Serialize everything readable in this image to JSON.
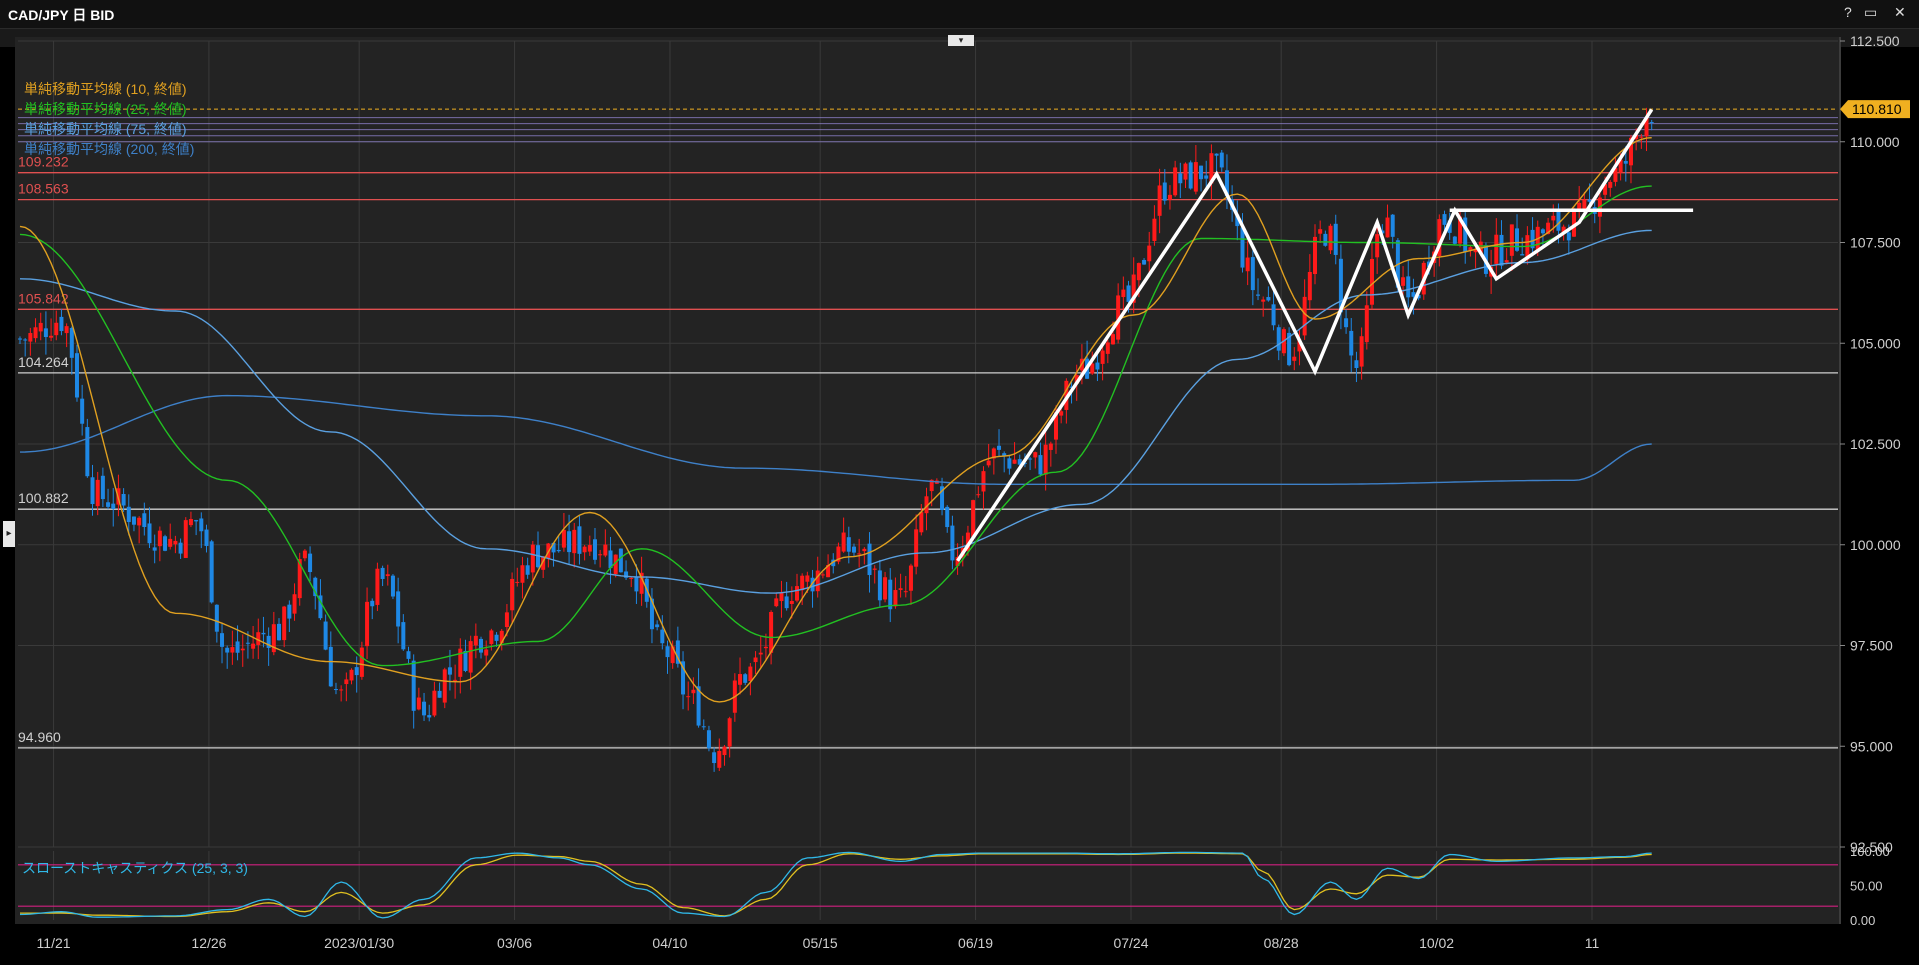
{
  "window": {
    "title": "CAD/JPY 日 BID",
    "help_label": "?",
    "restore_label": "▭",
    "close_label": "✕",
    "collapse_label": "▾",
    "expand_label": "▸"
  },
  "colors": {
    "background": "#000000",
    "panel": "#232323",
    "grid": "#3a3a3a",
    "up_candle": "#ff1a1a",
    "down_candle": "#1e88e5",
    "sma10": "#e0a020",
    "sma25": "#22c022",
    "sma75": "#5aa0e0",
    "sma200": "#3e80c8",
    "resistance": "#e05050",
    "support": "#d0d0d0",
    "price_tag": "#f0b020",
    "pattern": "#ffffff",
    "stoch_k": "#30b8e8",
    "stoch_d": "#e0c020",
    "stoch_band": "#d02080"
  },
  "chart_data": {
    "type": "candlestick",
    "title": "CAD/JPY 日 BID",
    "ylim": [
      92.5,
      112.5
    ],
    "y_ticks": [
      "112.500",
      "110.000",
      "107.500",
      "105.000",
      "102.500",
      "100.000",
      "97.500",
      "95.000",
      "92.500"
    ],
    "x_ticks": [
      "11/21",
      "12/26",
      "2023/01/30",
      "03/06",
      "04/10",
      "05/15",
      "06/19",
      "07/24",
      "08/28",
      "10/02",
      "11"
    ],
    "current_price": "110.810",
    "legend": [
      {
        "label": "単純移動平均線 (10, 終値)",
        "color": "#e0a020"
      },
      {
        "label": "単純移動平均線 (25, 終値)",
        "color": "#22c022"
      },
      {
        "label": "単純移動平均線 (75, 終値)",
        "color": "#5aa0e0"
      },
      {
        "label": "単純移動平均線 (200, 終値)",
        "color": "#3e80c8"
      }
    ],
    "horizontal_levels": [
      {
        "label": "109.232",
        "value": 109.232,
        "kind": "resistance"
      },
      {
        "label": "108.563",
        "value": 108.563,
        "kind": "resistance"
      },
      {
        "label": "105.842",
        "value": 105.842,
        "kind": "resistance"
      },
      {
        "label": "104.264",
        "value": 104.264,
        "kind": "support"
      },
      {
        "label": "100.882",
        "value": 100.882,
        "kind": "support"
      },
      {
        "label": "94.960",
        "value": 94.96,
        "kind": "support"
      }
    ],
    "ma_anchors": {
      "sma10": [
        [
          0,
          107.9
        ],
        [
          30,
          98.3
        ],
        [
          60,
          97.1
        ],
        [
          85,
          96.6
        ],
        [
          110,
          100.8
        ],
        [
          135,
          96.1
        ],
        [
          160,
          99.7
        ],
        [
          190,
          102.2
        ],
        [
          215,
          105.7
        ],
        [
          235,
          108.7
        ],
        [
          250,
          105.6
        ],
        [
          270,
          107.1
        ],
        [
          290,
          107.5
        ],
        [
          315,
          110.1
        ]
      ],
      "sma25": [
        [
          0,
          107.7
        ],
        [
          40,
          101.6
        ],
        [
          70,
          97.0
        ],
        [
          100,
          97.6
        ],
        [
          120,
          99.9
        ],
        [
          145,
          97.7
        ],
        [
          170,
          98.5
        ],
        [
          200,
          101.8
        ],
        [
          228,
          107.6
        ],
        [
          260,
          107.5
        ],
        [
          290,
          107.4
        ],
        [
          315,
          108.9
        ]
      ],
      "sma75": [
        [
          0,
          106.6
        ],
        [
          30,
          105.8
        ],
        [
          60,
          102.8
        ],
        [
          90,
          99.9
        ],
        [
          120,
          99.2
        ],
        [
          145,
          98.8
        ],
        [
          175,
          99.8
        ],
        [
          205,
          101.0
        ],
        [
          235,
          104.6
        ],
        [
          260,
          106.2
        ],
        [
          290,
          107.0
        ],
        [
          315,
          107.8
        ]
      ],
      "sma200": [
        [
          0,
          102.3
        ],
        [
          40,
          103.7
        ],
        [
          90,
          103.2
        ],
        [
          140,
          101.9
        ],
        [
          190,
          101.5
        ],
        [
          250,
          101.5
        ],
        [
          300,
          101.6
        ],
        [
          315,
          102.5
        ]
      ]
    },
    "close_anchors": [
      [
        0,
        105.1
      ],
      [
        8,
        105.6
      ],
      [
        15,
        101.2
      ],
      [
        30,
        100.1
      ],
      [
        34,
        100.6
      ],
      [
        40,
        97.3
      ],
      [
        50,
        97.9
      ],
      [
        55,
        99.5
      ],
      [
        62,
        96.2
      ],
      [
        70,
        99.1
      ],
      [
        78,
        95.8
      ],
      [
        82,
        96.8
      ],
      [
        90,
        97.8
      ],
      [
        100,
        99.8
      ],
      [
        110,
        100.1
      ],
      [
        118,
        99.4
      ],
      [
        124,
        97.4
      ],
      [
        130,
        96.1
      ],
      [
        134,
        94.9
      ],
      [
        140,
        96.8
      ],
      [
        150,
        99.0
      ],
      [
        160,
        99.9
      ],
      [
        170,
        98.6
      ],
      [
        176,
        101.4
      ],
      [
        180,
        99.8
      ],
      [
        188,
        102.2
      ],
      [
        196,
        102.0
      ],
      [
        205,
        104.3
      ],
      [
        213,
        105.9
      ],
      [
        222,
        109.0
      ],
      [
        230,
        109.3
      ],
      [
        240,
        106.1
      ],
      [
        245,
        104.8
      ],
      [
        252,
        107.8
      ],
      [
        258,
        104.4
      ],
      [
        263,
        108.1
      ],
      [
        268,
        106.0
      ],
      [
        275,
        108.1
      ],
      [
        282,
        107.1
      ],
      [
        290,
        107.6
      ],
      [
        300,
        108.0
      ],
      [
        308,
        109.2
      ],
      [
        315,
        110.8
      ]
    ],
    "pattern_lines": [
      {
        "points": [
          [
            181,
            99.6
          ],
          [
            231,
            109.2
          ],
          [
            250,
            104.3
          ],
          [
            262,
            108.0
          ],
          [
            268,
            105.7
          ],
          [
            277,
            108.3
          ],
          [
            285,
            106.6
          ],
          [
            301,
            108.0
          ],
          [
            315,
            110.8
          ]
        ]
      },
      {
        "points": [
          [
            276,
            108.3
          ],
          [
            323,
            108.3
          ]
        ]
      }
    ],
    "stochastic": {
      "label": "スローストキャスティクス (25, 3, 3)",
      "ylim": [
        0,
        100
      ],
      "y_ticks": [
        "100.00",
        "50.00",
        "0.00"
      ],
      "upper_band": 80,
      "lower_band": 20,
      "k_anchors": [
        [
          0,
          8
        ],
        [
          8,
          12
        ],
        [
          15,
          4
        ],
        [
          30,
          6
        ],
        [
          40,
          15
        ],
        [
          48,
          30
        ],
        [
          55,
          5
        ],
        [
          62,
          55
        ],
        [
          70,
          3
        ],
        [
          78,
          30
        ],
        [
          88,
          90
        ],
        [
          96,
          97
        ],
        [
          104,
          90
        ],
        [
          110,
          80
        ],
        [
          120,
          45
        ],
        [
          128,
          10
        ],
        [
          136,
          5
        ],
        [
          144,
          40
        ],
        [
          152,
          90
        ],
        [
          160,
          98
        ],
        [
          170,
          85
        ],
        [
          178,
          95
        ],
        [
          186,
          97
        ],
        [
          200,
          97
        ],
        [
          212,
          96
        ],
        [
          225,
          98
        ],
        [
          236,
          97
        ],
        [
          240,
          60
        ],
        [
          246,
          8
        ],
        [
          253,
          55
        ],
        [
          258,
          30
        ],
        [
          264,
          75
        ],
        [
          270,
          60
        ],
        [
          276,
          95
        ],
        [
          285,
          85
        ],
        [
          300,
          90
        ],
        [
          310,
          92
        ],
        [
          315,
          97
        ]
      ],
      "d_anchors": [
        [
          0,
          10
        ],
        [
          8,
          10
        ],
        [
          15,
          7
        ],
        [
          30,
          5
        ],
        [
          40,
          12
        ],
        [
          48,
          25
        ],
        [
          55,
          12
        ],
        [
          62,
          40
        ],
        [
          70,
          10
        ],
        [
          78,
          22
        ],
        [
          88,
          80
        ],
        [
          96,
          94
        ],
        [
          104,
          92
        ],
        [
          110,
          85
        ],
        [
          120,
          52
        ],
        [
          128,
          18
        ],
        [
          136,
          6
        ],
        [
          144,
          30
        ],
        [
          152,
          80
        ],
        [
          160,
          96
        ],
        [
          170,
          88
        ],
        [
          178,
          93
        ],
        [
          186,
          96
        ],
        [
          200,
          96
        ],
        [
          212,
          95
        ],
        [
          225,
          97
        ],
        [
          236,
          96
        ],
        [
          240,
          70
        ],
        [
          246,
          15
        ],
        [
          253,
          45
        ],
        [
          258,
          38
        ],
        [
          264,
          65
        ],
        [
          270,
          62
        ],
        [
          276,
          88
        ],
        [
          285,
          87
        ],
        [
          300,
          88
        ],
        [
          310,
          91
        ],
        [
          315,
          95
        ]
      ]
    }
  }
}
